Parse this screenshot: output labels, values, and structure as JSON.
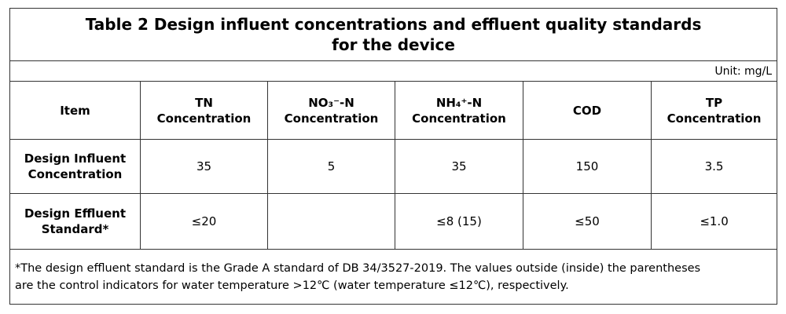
{
  "table": {
    "title": "Table 2 Design influent concentrations and effluent quality standards\nfor the device",
    "unit": "Unit: mg/L",
    "header": [
      "Item",
      "TN\nConcentration",
      "NO₃⁻-N\nConcentration",
      "NH₄⁺-N\nConcentration",
      "COD",
      "TP\nConcentration"
    ],
    "rows": [
      [
        "Design Influent\nConcentration",
        "35",
        "5",
        "35",
        "150",
        "3.5"
      ],
      [
        "Design Effluent\nStandard*",
        "≤20",
        null,
        "≤8 (15)",
        "≤50",
        "≤1.0"
      ]
    ],
    "footnote": "*The design effluent standard is the Grade A standard of DB 34/3527-2019. The values outside (inside) the parentheses\nare the control indicators for water temperature >12℃ (water temperature ≤12℃), respectively."
  }
}
